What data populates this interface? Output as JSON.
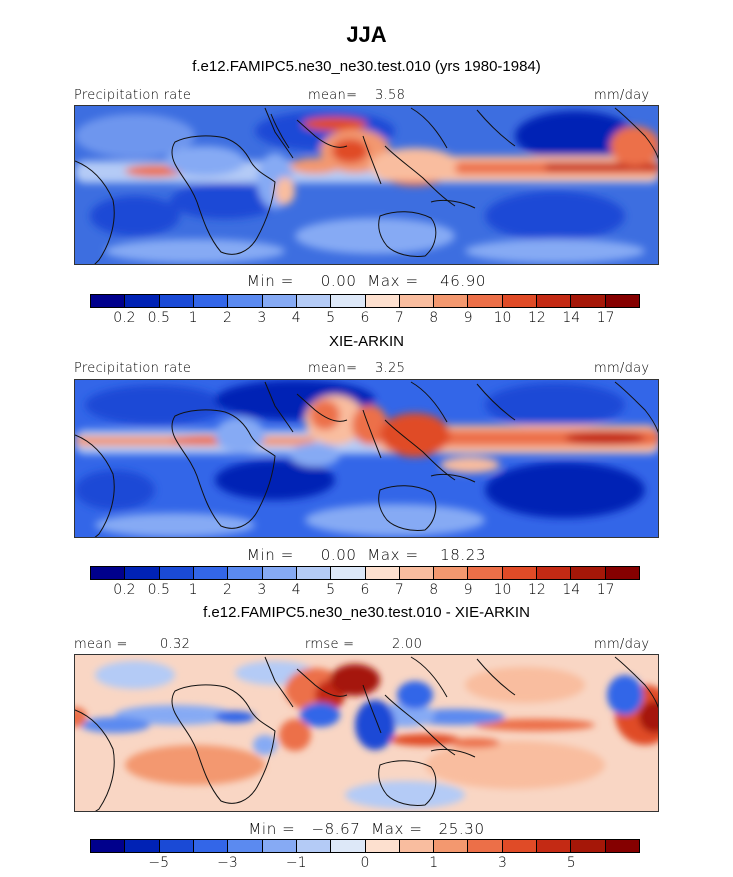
{
  "header": {
    "title": "JJA"
  },
  "panels": [
    {
      "subtitle": "f.e12.FAMIPC5.ne30_ne30.test.010 (yrs 1980-1984)",
      "left_label": "Precipitation rate",
      "center_label": "mean=",
      "center_value": "3.58",
      "right_label": "mm/day",
      "min_label": "Min =",
      "min_value": "0.00",
      "max_label": "Max =",
      "max_value": "46.90"
    },
    {
      "subtitle": "XIE-ARKIN",
      "left_label": "Precipitation rate",
      "center_label": "mean=",
      "center_value": "3.25",
      "right_label": "mm/day",
      "min_label": "Min =",
      "min_value": "0.00",
      "max_label": "Max =",
      "max_value": "18.23"
    },
    {
      "subtitle": "f.e12.FAMIPC5.ne30_ne30.test.010 - XIE-ARKIN",
      "left_label": "mean =",
      "left_value": "0.32",
      "center_label": "rmse =",
      "center_value": "2.00",
      "right_label": "mm/day",
      "min_label": "Min =",
      "min_value": "−8.67",
      "max_label": "Max =",
      "max_value": "25.30"
    }
  ],
  "colorbar": {
    "colors": [
      "#00008c",
      "#0022b5",
      "#1a4ad6",
      "#3366e8",
      "#5b8af0",
      "#86aaf4",
      "#b4cbf6",
      "#dde8f8",
      "#fde0cf",
      "#f9bd9f",
      "#f3986f",
      "#ec6f48",
      "#e04b27",
      "#c42a14",
      "#a51708",
      "#850000"
    ]
  },
  "colorbar_precip": {
    "ticks": [
      "0.2",
      "0.5",
      "1",
      "2",
      "3",
      "4",
      "5",
      "6",
      "7",
      "8",
      "9",
      "10",
      "12",
      "14",
      "17"
    ]
  },
  "colorbar_diff": {
    "ticks": [
      "−5",
      "−3",
      "−1",
      "0",
      "1",
      "3",
      "5"
    ],
    "tick_edges": [
      2,
      4,
      6,
      8,
      10,
      12,
      14
    ]
  }
}
